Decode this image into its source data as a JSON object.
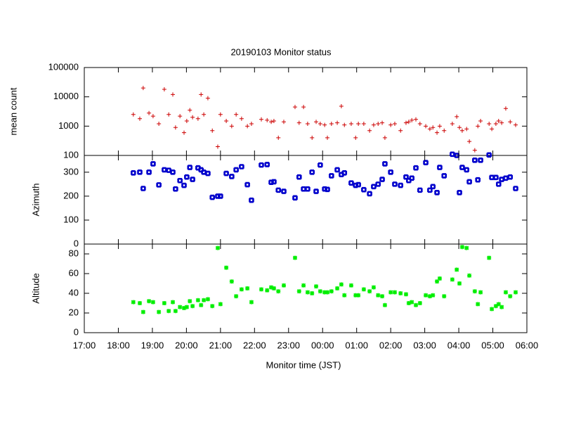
{
  "chart_data": {
    "type": "scatter",
    "title": "20190103 Monitor status",
    "xlabel": "Monitor time (JST)",
    "xlim": [
      17,
      30
    ],
    "xticks": [
      {
        "value": 17,
        "label": "17:00"
      },
      {
        "value": 18,
        "label": "18:00"
      },
      {
        "value": 19,
        "label": "19:00"
      },
      {
        "value": 20,
        "label": "20:00"
      },
      {
        "value": 21,
        "label": "21:00"
      },
      {
        "value": 22,
        "label": "22:00"
      },
      {
        "value": 23,
        "label": "23:00"
      },
      {
        "value": 24,
        "label": "00:00"
      },
      {
        "value": 25,
        "label": "01:00"
      },
      {
        "value": 26,
        "label": "02:00"
      },
      {
        "value": 27,
        "label": "03:00"
      },
      {
        "value": 28,
        "label": "04:00"
      },
      {
        "value": 29,
        "label": "05:00"
      },
      {
        "value": 30,
        "label": "06:00"
      }
    ],
    "x": [
      18.44,
      18.63,
      18.73,
      18.9,
      19.02,
      19.19,
      19.35,
      19.48,
      19.6,
      19.68,
      19.81,
      19.93,
      20.01,
      20.1,
      20.18,
      20.34,
      20.43,
      20.51,
      20.63,
      20.76,
      20.92,
      21.0,
      21.17,
      21.33,
      21.46,
      21.62,
      21.79,
      21.91,
      22.2,
      22.37,
      22.49,
      22.57,
      22.7,
      22.86,
      23.19,
      23.31,
      23.44,
      23.56,
      23.69,
      23.81,
      23.93,
      24.06,
      24.14,
      24.26,
      24.43,
      24.55,
      24.64,
      24.84,
      24.97,
      25.05,
      25.21,
      25.38,
      25.5,
      25.63,
      25.75,
      25.83,
      26.0,
      26.12,
      26.29,
      26.45,
      26.53,
      26.62,
      26.74,
      26.86,
      27.03,
      27.15,
      27.24,
      27.36,
      27.44,
      27.57,
      27.81,
      27.94,
      28.02,
      28.1,
      28.23,
      28.31,
      28.47,
      28.56,
      28.64,
      28.89,
      28.97,
      29.09,
      29.17,
      29.26,
      29.38,
      29.51,
      29.67
    ],
    "panels": [
      {
        "ylabel": "mean count",
        "log": true,
        "ylim": [
          100,
          100000
        ],
        "yticks": [
          100,
          1000,
          10000,
          100000
        ],
        "color": "#cc0000",
        "marker": "plus",
        "values": [
          2500,
          1800,
          20000,
          2800,
          2200,
          1200,
          18000,
          2500,
          12000,
          900,
          2200,
          600,
          1500,
          3500,
          2000,
          1800,
          12000,
          2500,
          9000,
          700,
          200,
          2500,
          1500,
          1000,
          2500,
          1800,
          1000,
          1200,
          1700,
          1600,
          1400,
          1500,
          400,
          1400,
          4500,
          1300,
          4500,
          1200,
          400,
          1400,
          1200,
          1100,
          400,
          1200,
          1300,
          4800,
          1100,
          1200,
          400,
          1200,
          1200,
          700,
          1100,
          1200,
          1300,
          400,
          1100,
          1200,
          700,
          1300,
          1400,
          1600,
          1700,
          1200,
          1000,
          800,
          900,
          600,
          1000,
          700,
          1200,
          2100,
          900,
          700,
          800,
          300,
          150,
          1000,
          1500,
          1200,
          800,
          1200,
          1500,
          1300,
          4000,
          1400,
          1100
        ]
      },
      {
        "ylabel": "Azimuth",
        "log": false,
        "ylim": [
          0,
          370
        ],
        "yticks": [
          0,
          100,
          200,
          300
        ],
        "color": "#0000cc",
        "marker": "box",
        "values": [
          297,
          300,
          232,
          300,
          335,
          247,
          310,
          308,
          300,
          230,
          265,
          245,
          280,
          320,
          270,
          318,
          310,
          300,
          295,
          195,
          200,
          200,
          295,
          282,
          310,
          323,
          248,
          183,
          330,
          332,
          258,
          260,
          225,
          220,
          193,
          280,
          230,
          230,
          300,
          220,
          330,
          230,
          228,
          285,
          310,
          290,
          297,
          255,
          245,
          248,
          227,
          210,
          240,
          250,
          270,
          335,
          300,
          250,
          245,
          280,
          265,
          275,
          318,
          225,
          340,
          225,
          240,
          215,
          320,
          285,
          375,
          370,
          215,
          320,
          310,
          260,
          350,
          268,
          350,
          372,
          278,
          278,
          250,
          270,
          275,
          280,
          232
        ]
      },
      {
        "ylabel": "Altitude",
        "log": false,
        "ylim": [
          0,
          90
        ],
        "yticks": [
          0,
          20,
          40,
          60,
          80
        ],
        "color": "#00ee00",
        "marker": "star",
        "values": [
          31,
          30,
          21,
          32,
          31,
          21,
          30,
          22,
          31,
          22,
          26,
          25,
          26,
          32,
          27,
          33,
          28,
          33,
          34,
          27,
          86,
          29,
          66,
          52,
          37,
          44,
          45,
          31,
          44,
          43,
          46,
          45,
          42,
          48,
          76,
          42,
          48,
          41,
          40,
          47,
          42,
          41,
          41,
          42,
          45,
          49,
          38,
          48,
          38,
          38,
          44,
          42,
          46,
          38,
          37,
          28,
          41,
          41,
          40,
          39,
          30,
          31,
          28,
          30,
          38,
          37,
          38,
          52,
          55,
          37,
          54,
          64,
          50,
          87,
          86,
          58,
          42,
          29,
          41,
          76,
          24,
          27,
          29,
          26,
          41,
          37,
          41
        ]
      }
    ]
  }
}
